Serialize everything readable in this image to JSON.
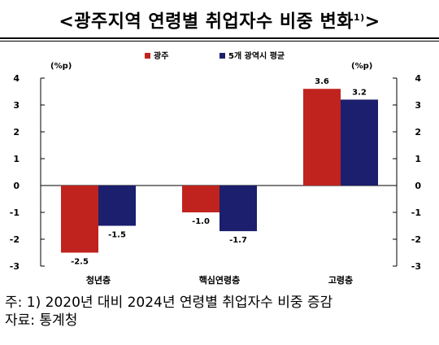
{
  "title": "<광주지역 연령별 취업자수 비중 변화",
  "title_sup": "1)",
  "title_end": ">",
  "footnote": "주: 1) 2020년 대비 2024년 연령별 취업자수 비중 증감",
  "source": "자료: 통계청",
  "colors": {
    "series1": "#C0231E",
    "series2": "#1B1F6E"
  },
  "chart_data": {
    "type": "bar",
    "categories": [
      "청년층",
      "핵심연령층",
      "고령층"
    ],
    "series": [
      {
        "name": "광주",
        "values": [
          -2.5,
          -1.0,
          3.6
        ],
        "labels": [
          "-2.5",
          "-1.0",
          "3.6"
        ]
      },
      {
        "name": "5개 광역시 평균",
        "values": [
          -1.5,
          -1.7,
          3.2
        ],
        "labels": [
          "-1.5",
          "-1.7",
          "3.2"
        ]
      }
    ],
    "ylim": [
      -3,
      4
    ],
    "yticks": [
      4,
      3,
      2,
      1,
      0,
      -1,
      -2,
      -3
    ],
    "ytick_labels": [
      "4",
      "3",
      "2",
      "1",
      "0",
      "-1",
      "-2",
      "-3"
    ],
    "unit_left": "(%p)",
    "unit_right": "(%p)",
    "legend_position": "top-center",
    "grid": false
  }
}
